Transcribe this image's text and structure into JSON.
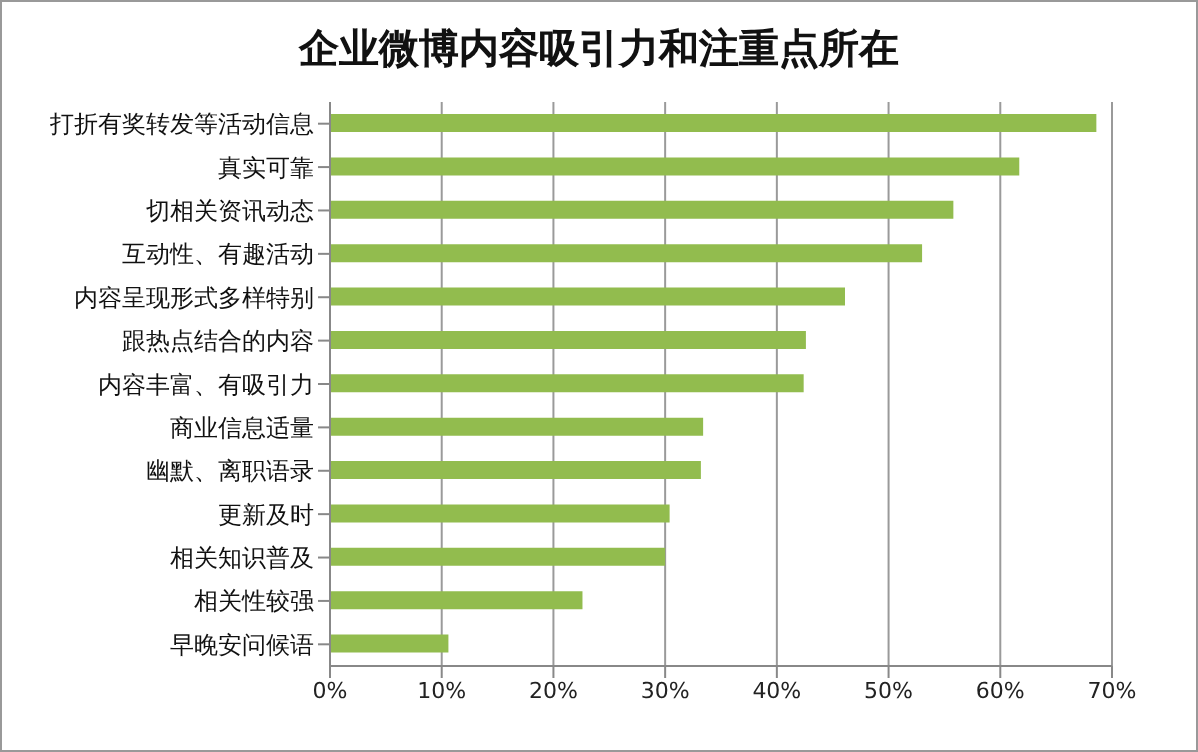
{
  "chart_data": {
    "type": "bar",
    "orientation": "horizontal",
    "title": "企业微博内容吸引力和注重点所在",
    "categories": [
      "打折有奖转发等活动信息",
      "真实可靠",
      "切相关资讯动态",
      "互动性、有趣活动",
      "内容呈现形式多样特别",
      "跟热点结合的内容",
      "内容丰富、有吸引力",
      "商业信息适量",
      "幽默、离职语录",
      "更新及时",
      "相关知识普及",
      "相关性较强",
      "早晚安问候语"
    ],
    "values": [
      68.6,
      61.7,
      55.8,
      53,
      46.1,
      42.6,
      42.4,
      33.4,
      33.2,
      30.4,
      30,
      22.6,
      10.6
    ],
    "color": "#92bc4e",
    "xlim": [
      0,
      70
    ],
    "xticks": [
      {
        "value": 0,
        "label": "0%"
      },
      {
        "value": 10,
        "label": "10%"
      },
      {
        "value": 20,
        "label": "20%"
      },
      {
        "value": 30,
        "label": "30%"
      },
      {
        "value": 40,
        "label": "40%"
      },
      {
        "value": 50,
        "label": "50%"
      },
      {
        "value": 60,
        "label": "60%"
      },
      {
        "value": 70,
        "label": "70%"
      }
    ],
    "grid": "x"
  }
}
